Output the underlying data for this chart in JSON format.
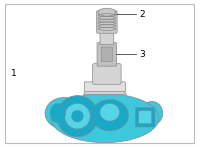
{
  "bg_color": "#ffffff",
  "border_color": "#bbbbbb",
  "blue_main": "#3ec8de",
  "blue_dark": "#1aa8c8",
  "blue_mid": "#55d5e8",
  "blue_light": "#7added",
  "stem_gray": "#d4d4d4",
  "stem_gray2": "#c0c0c0",
  "stem_dark": "#888888",
  "stem_outline": "#999999",
  "cap_gray": "#c8c8c8",
  "cap_light": "#e0e0e0",
  "label_fontsize": 6.5,
  "line_color": "#444444"
}
